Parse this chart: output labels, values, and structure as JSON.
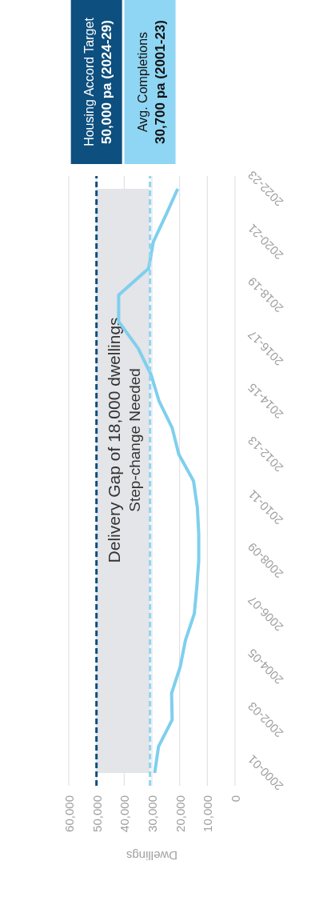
{
  "chart_data": {
    "type": "line",
    "orientation": "horizontal",
    "xlabel": "Dwellings",
    "categories": [
      "2022-23",
      null,
      "2020-21",
      null,
      "2018-19",
      null,
      "2016-17",
      null,
      "2014-15",
      null,
      "2012-13",
      null,
      "2010-11",
      null,
      "2008-09",
      null,
      "2006-07",
      null,
      "2004-05",
      null,
      "2002-03",
      null,
      "2000-01"
    ],
    "series": [
      {
        "color": "#7fcfee",
        "values": [
          20700,
          25000,
          29500,
          31200,
          42000,
          42000,
          35000,
          30300,
          27400,
          22700,
          20300,
          15000,
          13600,
          13100,
          13100,
          13800,
          14700,
          17900,
          19800,
          22900,
          22700,
          27600,
          29000
        ]
      }
    ],
    "xlim": [
      60000,
      0
    ],
    "xticks": [
      {
        "value": 60000,
        "label": "60,000"
      },
      {
        "value": 50000,
        "label": "50,000"
      },
      {
        "value": 40000,
        "label": "40,000"
      },
      {
        "value": 30000,
        "label": "30,000"
      },
      {
        "value": 20000,
        "label": "20,000"
      },
      {
        "value": 10000,
        "label": "10,000"
      },
      {
        "value": 0,
        "label": "0"
      }
    ],
    "ref_lines": [
      {
        "axis": "x",
        "value": 50000,
        "label": "Housing Accord Target\n50,000 pa (2024-29)",
        "color": "#0d4f7f",
        "line_style": "dashed"
      },
      {
        "axis": "x",
        "value": 30700,
        "label": "Avg. Completions\n30,700 pa (2001-23)",
        "color": "#8fd6f4",
        "line_style": "dashed"
      }
    ],
    "bands": [
      {
        "axis": "x",
        "from": 30700,
        "to": 50000,
        "label": "Delivery Gap of 18,000 dwellings",
        "color": "#e3e5e8"
      }
    ],
    "annotations": [
      "Step-change Needed"
    ],
    "grid": "x",
    "legend": false,
    "marker": "none",
    "line_style": "solid"
  }
}
